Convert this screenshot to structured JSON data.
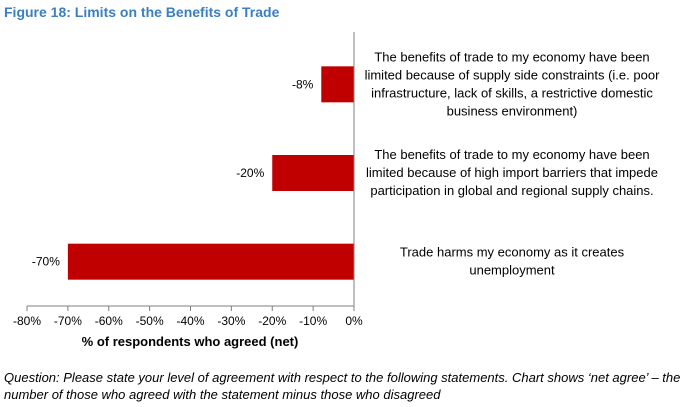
{
  "figure_title": "Figure 18: Limits on the Benefits of Trade",
  "caption": "Question: Please state your level of agreement with respect to the following statements. Chart shows ‘net agree’ – the number of those who agreed with the statement minus those who disagreed",
  "colors": {
    "bar": "#c00000",
    "title": "#3a7fc1",
    "axis": "#7f7f7f"
  },
  "chart_data": {
    "type": "bar",
    "orientation": "horizontal",
    "categories": [
      "The benefits of trade to my economy have been limited because of supply side constraints (i.e. poor infrastructure, lack of skills, a restrictive domestic business environment)",
      "The benefits of trade to my economy have been limited because of high import barriers that impede participation in global and regional supply chains.",
      "Trade harms my economy as it creates unemployment"
    ],
    "category_lines": [
      [
        "The benefits of trade to my economy have been",
        "limited because of supply side constraints (i.e. poor",
        "infrastructure, lack of skills, a restrictive domestic",
        "business environment)"
      ],
      [
        "The benefits of trade to my economy have been",
        "limited because of high import barriers that impede",
        "participation in global and regional supply chains."
      ],
      [
        "Trade harms my economy as it creates",
        "unemployment"
      ]
    ],
    "values": [
      -8,
      -20,
      -70
    ],
    "data_labels": [
      "-8%",
      "-20%",
      "-70%"
    ],
    "xlabel": "% of respondents who agreed (net)",
    "xlim": [
      -80,
      0
    ],
    "xticks": [
      -80,
      -70,
      -60,
      -50,
      -40,
      -30,
      -20,
      -10,
      0
    ],
    "xtick_labels": [
      "-80%",
      "-70%",
      "-60%",
      "-50%",
      "-40%",
      "-30%",
      "-20%",
      "-10%",
      "0%"
    ],
    "grid": false,
    "legend": "none"
  }
}
